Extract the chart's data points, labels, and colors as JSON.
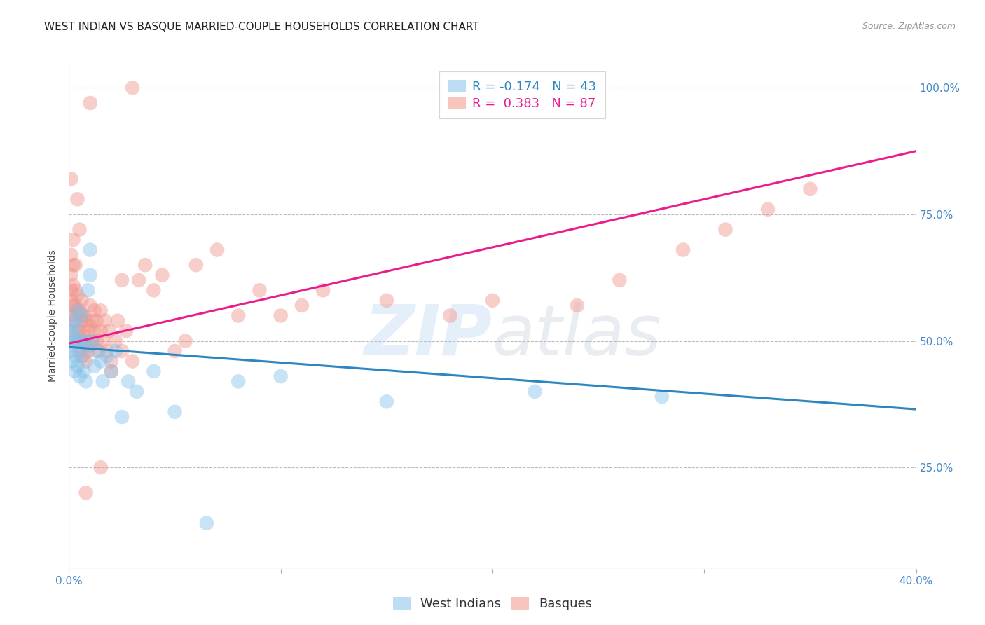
{
  "title": "WEST INDIAN VS BASQUE MARRIED-COUPLE HOUSEHOLDS CORRELATION CHART",
  "source": "Source: ZipAtlas.com",
  "ylabel": "Married-couple Households",
  "xlim": [
    0.0,
    0.4
  ],
  "ylim": [
    0.05,
    1.05
  ],
  "yticks": [
    0.25,
    0.5,
    0.75,
    1.0
  ],
  "xticks": [
    0.0,
    0.1,
    0.2,
    0.3,
    0.4
  ],
  "background_color": "#ffffff",
  "grid_color": "#cccccc",
  "west_indian_color": "#85C1E9",
  "basque_color": "#F1948A",
  "west_indian_line_color": "#2E86C1",
  "basque_line_color": "#E91E8C",
  "wi_line_x0": 0.0,
  "wi_line_y0": 0.488,
  "wi_line_x1": 0.4,
  "wi_line_y1": 0.365,
  "bq_line_x0": 0.0,
  "bq_line_y0": 0.495,
  "bq_line_x1": 0.4,
  "bq_line_y1": 0.875,
  "legend_R_wi": "-0.174",
  "legend_N_wi": "43",
  "legend_R_bq": "0.383",
  "legend_N_bq": "87",
  "watermark_zip": "ZIP",
  "watermark_atlas": "atlas",
  "zip_color": "#AACCEE",
  "atlas_color": "#AABBCC",
  "title_fontsize": 11,
  "axis_label_fontsize": 10,
  "tick_fontsize": 11,
  "legend_fontsize": 13,
  "source_fontsize": 9,
  "wi_x": [
    0.001,
    0.001,
    0.001,
    0.002,
    0.002,
    0.002,
    0.002,
    0.003,
    0.003,
    0.003,
    0.004,
    0.004,
    0.004,
    0.005,
    0.005,
    0.006,
    0.006,
    0.007,
    0.007,
    0.008,
    0.008,
    0.009,
    0.01,
    0.01,
    0.011,
    0.012,
    0.013,
    0.015,
    0.016,
    0.018,
    0.02,
    0.022,
    0.025,
    0.028,
    0.032,
    0.04,
    0.05,
    0.065,
    0.08,
    0.1,
    0.15,
    0.22,
    0.28
  ],
  "wi_y": [
    0.48,
    0.5,
    0.52,
    0.46,
    0.49,
    0.51,
    0.54,
    0.44,
    0.47,
    0.53,
    0.45,
    0.5,
    0.56,
    0.43,
    0.5,
    0.47,
    0.55,
    0.44,
    0.5,
    0.42,
    0.49,
    0.6,
    0.63,
    0.68,
    0.5,
    0.45,
    0.48,
    0.46,
    0.42,
    0.47,
    0.44,
    0.48,
    0.35,
    0.42,
    0.4,
    0.44,
    0.36,
    0.14,
    0.42,
    0.43,
    0.38,
    0.4,
    0.39
  ],
  "bq_x": [
    0.001,
    0.001,
    0.001,
    0.001,
    0.001,
    0.002,
    0.002,
    0.002,
    0.002,
    0.002,
    0.003,
    0.003,
    0.003,
    0.003,
    0.004,
    0.004,
    0.004,
    0.005,
    0.005,
    0.005,
    0.006,
    0.006,
    0.006,
    0.007,
    0.007,
    0.007,
    0.008,
    0.008,
    0.008,
    0.009,
    0.009,
    0.01,
    0.01,
    0.01,
    0.011,
    0.011,
    0.012,
    0.012,
    0.013,
    0.013,
    0.014,
    0.015,
    0.015,
    0.016,
    0.017,
    0.018,
    0.019,
    0.02,
    0.022,
    0.023,
    0.025,
    0.027,
    0.03,
    0.033,
    0.036,
    0.04,
    0.044,
    0.05,
    0.055,
    0.06,
    0.07,
    0.08,
    0.09,
    0.1,
    0.11,
    0.12,
    0.15,
    0.18,
    0.2,
    0.24,
    0.26,
    0.29,
    0.31,
    0.33,
    0.35,
    0.001,
    0.002,
    0.003,
    0.004,
    0.005,
    0.006,
    0.008,
    0.01,
    0.015,
    0.02,
    0.025,
    0.03
  ],
  "bq_y": [
    0.55,
    0.58,
    0.6,
    0.63,
    0.67,
    0.52,
    0.55,
    0.57,
    0.61,
    0.65,
    0.5,
    0.54,
    0.57,
    0.6,
    0.52,
    0.56,
    0.59,
    0.48,
    0.52,
    0.56,
    0.5,
    0.54,
    0.58,
    0.47,
    0.51,
    0.55,
    0.46,
    0.5,
    0.54,
    0.48,
    0.52,
    0.49,
    0.53,
    0.57,
    0.5,
    0.54,
    0.52,
    0.56,
    0.5,
    0.54,
    0.48,
    0.52,
    0.56,
    0.5,
    0.54,
    0.48,
    0.52,
    0.46,
    0.5,
    0.54,
    0.48,
    0.52,
    0.46,
    0.62,
    0.65,
    0.6,
    0.63,
    0.48,
    0.5,
    0.65,
    0.68,
    0.55,
    0.6,
    0.55,
    0.57,
    0.6,
    0.58,
    0.55,
    0.58,
    0.57,
    0.62,
    0.68,
    0.72,
    0.76,
    0.8,
    0.82,
    0.7,
    0.65,
    0.78,
    0.72,
    0.55,
    0.2,
    0.97,
    0.25,
    0.44,
    0.62,
    1.0
  ]
}
